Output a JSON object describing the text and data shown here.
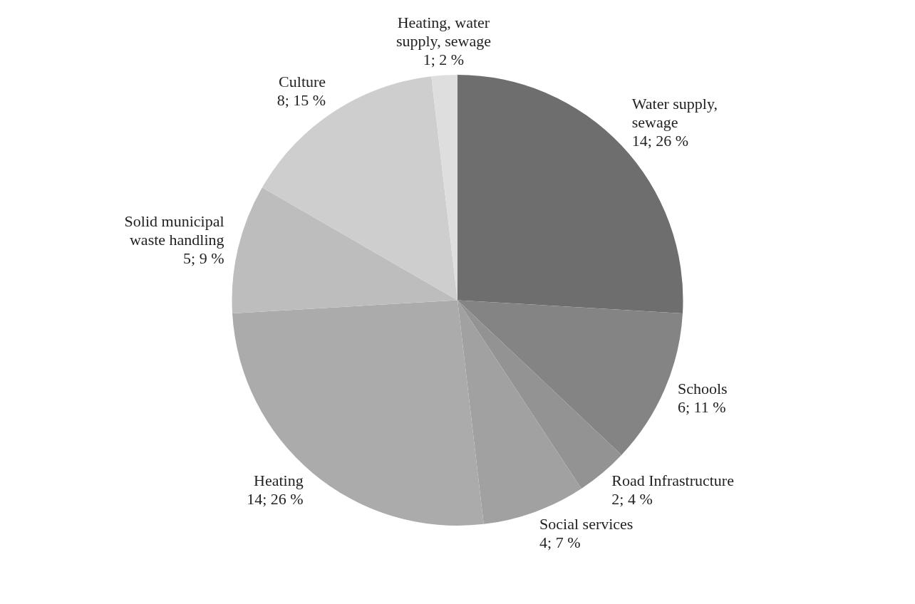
{
  "chart_data": {
    "type": "pie",
    "categories": [
      "Water supply, sewage",
      "Schools",
      "Road Infrastructure",
      "Social services",
      "Heating",
      "Solid municipal waste handling",
      "Culture",
      "Heating, water supply, sewage"
    ],
    "values": [
      14,
      6,
      2,
      4,
      14,
      5,
      8,
      1
    ],
    "colors": [
      "#6e6e6e",
      "#848484",
      "#939393",
      "#a1a1a1",
      "#ababab",
      "#bdbdbd",
      "#cecece",
      "#dedede"
    ],
    "value_labels": [
      "14; 26 %",
      "6; 11 %",
      "2; 4 %",
      "4; 7 %",
      "14; 26 %",
      "5; 9 %",
      "8; 15 %",
      "1; 2 %"
    ],
    "legend": false
  }
}
